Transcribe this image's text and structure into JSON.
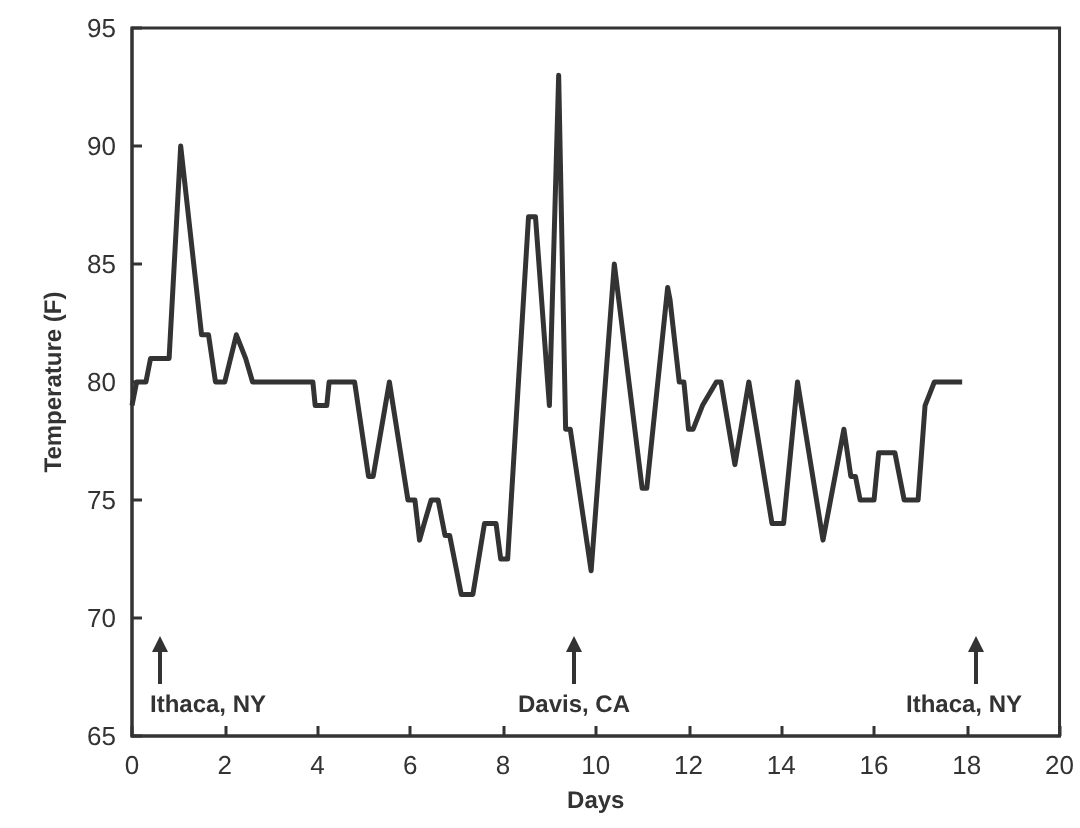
{
  "chart_data": {
    "type": "line",
    "xlabel": "Days",
    "ylabel": "Temperature (F)",
    "xlim": [
      0,
      20
    ],
    "xticks": [
      0,
      2,
      4,
      6,
      8,
      10,
      12,
      14,
      16,
      18,
      20
    ],
    "ylim": [
      65,
      95
    ],
    "yticks": [
      65,
      70,
      75,
      80,
      85,
      90,
      95
    ],
    "grid": false,
    "marker": "none",
    "line_style": "solid",
    "series": [
      {
        "color": "#333333",
        "x": [
          0,
          0.1,
          0.3,
          0.4,
          0.7,
          0.8,
          1.05,
          1.5,
          1.65,
          1.8,
          2.0,
          2.25,
          2.45,
          2.6,
          3.0,
          3.9,
          3.95,
          4.2,
          4.25,
          4.8,
          5.1,
          5.2,
          5.55,
          5.95,
          6.1,
          6.2,
          6.3,
          6.45,
          6.6,
          6.75,
          6.85,
          7.0,
          7.1,
          7.35,
          7.6,
          7.85,
          7.95,
          8.1,
          8.55,
          8.7,
          9.0,
          9.2,
          9.35,
          9.45,
          9.9,
          10.4,
          11.0,
          11.1,
          11.55,
          11.6,
          11.8,
          11.9,
          12.0,
          12.1,
          12.3,
          12.45,
          12.6,
          12.7,
          13.0,
          13.3,
          13.8,
          14.05,
          14.35,
          14.9,
          15.35,
          15.5,
          15.6,
          15.7,
          16.0,
          16.1,
          16.45,
          16.55,
          16.65,
          16.95,
          17.1,
          17.2,
          17.3,
          17.9
        ],
        "values": [
          79,
          80,
          80,
          81,
          81,
          81,
          90,
          82,
          82,
          80,
          80,
          82,
          81,
          80,
          80,
          80,
          79,
          79,
          80,
          80,
          76,
          76,
          80,
          75,
          75,
          73.3,
          74,
          75,
          75,
          73.5,
          73.5,
          72,
          71,
          71,
          74,
          74,
          72.5,
          72.5,
          87,
          87,
          79,
          93,
          78,
          78,
          72,
          85,
          75.5,
          75.5,
          84,
          83.5,
          80,
          80,
          78,
          78,
          79,
          79.5,
          80,
          80,
          76.5,
          80,
          74,
          74,
          80,
          73.3,
          78,
          76,
          76,
          75,
          75,
          77,
          77,
          76,
          75,
          75,
          79,
          79.5,
          80,
          80
        ]
      }
    ],
    "annotations": [
      "Ithaca, NY",
      "Davis, CA",
      "Ithaca, NY"
    ]
  }
}
